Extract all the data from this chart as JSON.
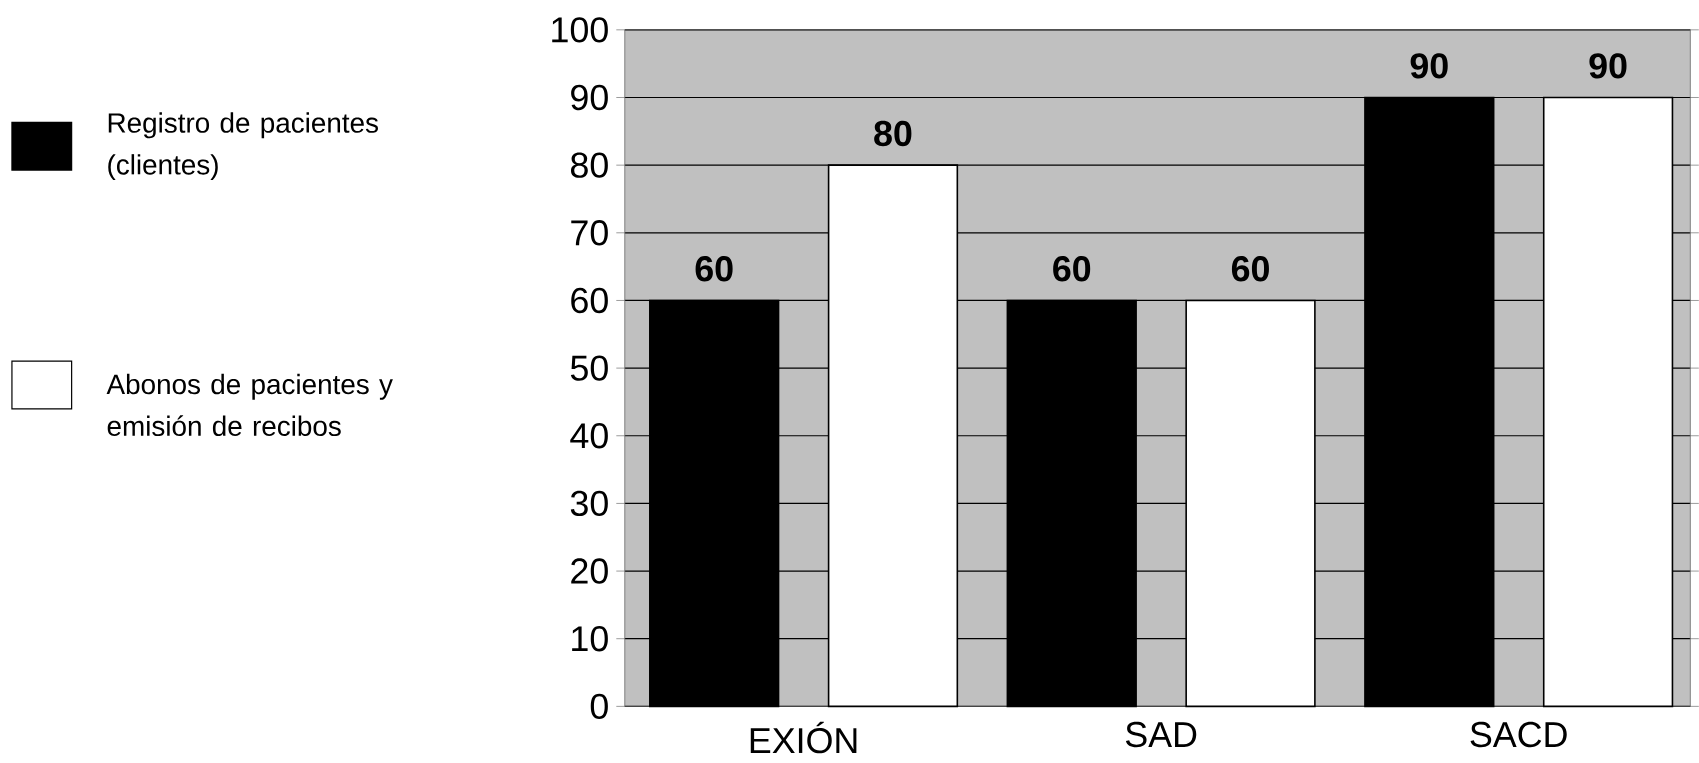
{
  "chart_data": {
    "type": "bar",
    "categories": [
      "EXIÓN",
      "SAD",
      "SACD"
    ],
    "series": [
      {
        "name": "Registro de pacientes (clientes)",
        "color": "#000000",
        "values": [
          60,
          60,
          90
        ]
      },
      {
        "name": "Abonos de pacientes y emisión de recibos",
        "color": "#ffffff",
        "values": [
          80,
          60,
          90
        ]
      }
    ],
    "ylim": [
      0,
      100
    ],
    "yticks": [
      0,
      10,
      20,
      30,
      40,
      50,
      60,
      70,
      80,
      90,
      100
    ],
    "grid": "y",
    "legend": "left",
    "data_labels": true
  }
}
